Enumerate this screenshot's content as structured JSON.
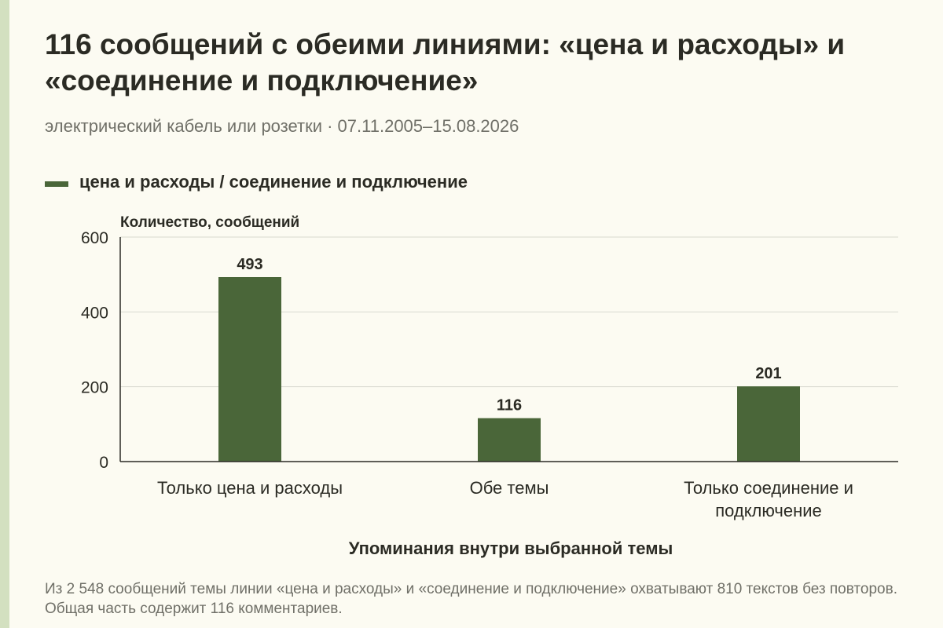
{
  "title": "116 сообщений с обеими линиями: «цена и расходы» и «соединение и подключение»",
  "subtitle": "электрический кабель или розетки · 07.11.2005–15.08.2026",
  "legend": {
    "label": "цена и расходы / соединение и подключение",
    "color": "#4a6639"
  },
  "footnote": "Из 2 548 сообщений темы линии «цена и расходы» и «соединение и подключение» охватывают 810 текстов без повторов. Общая часть содержит 116 комментариев.",
  "chart_data": {
    "type": "bar",
    "title": "116 сообщений с обеими линиями: «цена и расходы» и «соединение и подключение»",
    "subtitle": "электрический кабель или розетки · 07.11.2005–15.08.2026",
    "categories": [
      "Только цена и расходы",
      "Обе темы",
      "Только соединение и подключение"
    ],
    "category_lines": [
      [
        "Только цена и расходы"
      ],
      [
        "Обе темы"
      ],
      [
        "Только соединение и",
        "подключение"
      ]
    ],
    "series": [
      {
        "name": "цена и расходы / соединение и подключение",
        "values": [
          493,
          116,
          201
        ],
        "color": "#4a6639"
      }
    ],
    "xlabel": "Упоминания внутри выбранной темы",
    "ylabel": "Количество, сообщений",
    "ylim": [
      0,
      600
    ],
    "yticks": [
      0,
      200,
      400,
      600
    ],
    "grid": true,
    "data_labels": true,
    "legend_position": "top-left"
  }
}
